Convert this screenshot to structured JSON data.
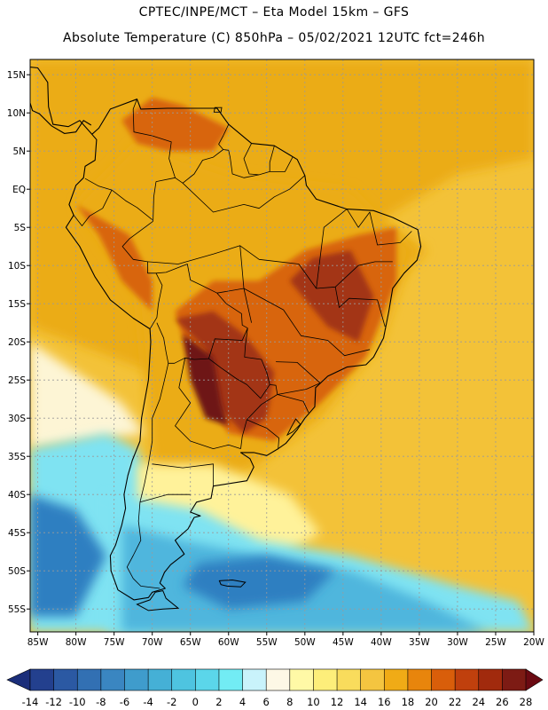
{
  "title": {
    "line1": "CPTEC/INPE/MCT –  Eta Model 15km – GFS",
    "line2": "Absolute Temperature (C) 850hPa – 05/02/2021 12UTC fct=246h"
  },
  "map": {
    "lon_range": [
      -86,
      -20
    ],
    "lat_range": [
      -58,
      17
    ],
    "lon_ticks": [
      "85W",
      "80W",
      "75W",
      "70W",
      "65W",
      "60W",
      "55W",
      "50W",
      "45W",
      "40W",
      "35W",
      "30W",
      "25W",
      "20W"
    ],
    "lon_tick_values": [
      -85,
      -80,
      -75,
      -70,
      -65,
      -60,
      -55,
      -50,
      -45,
      -40,
      -35,
      -30,
      -25,
      -20
    ],
    "lat_ticks": [
      "15N",
      "10N",
      "5N",
      "EQ",
      "5S",
      "10S",
      "15S",
      "20S",
      "25S",
      "30S",
      "35S",
      "40S",
      "45S",
      "50S",
      "55S"
    ],
    "lat_tick_values": [
      15,
      10,
      5,
      0,
      -5,
      -10,
      -15,
      -20,
      -25,
      -30,
      -35,
      -40,
      -45,
      -50,
      -55
    ]
  },
  "colorbar": {
    "labels": [
      "-14",
      "-12",
      "-10",
      "-8",
      "-6",
      "-4",
      "-2",
      "0",
      "2",
      "4",
      "6",
      "8",
      "10",
      "12",
      "14",
      "16",
      "18",
      "20",
      "22",
      "24",
      "26",
      "28"
    ],
    "under_color": "#1b2e7a",
    "over_color": "#6b0a12",
    "colors": [
      "#23408e",
      "#2b59a3",
      "#3270b3",
      "#3a86c1",
      "#3f9ccc",
      "#45b0d6",
      "#4ec4e0",
      "#5bd6ea",
      "#72ecf4",
      "#c9f3fb",
      "#fdf8e6",
      "#fff9a6",
      "#fdee7a",
      "#f9dc5c",
      "#f4c540",
      "#f0ab16",
      "#e8850c",
      "#d95e0a",
      "#c0400d",
      "#a12a0d",
      "#7d1b14"
    ]
  },
  "palette": {
    "ocean_warm": "#f3c238",
    "tropics": "#ebac16",
    "hot": "#d8650f",
    "very_hot": "#a33412",
    "hottest": "#6e1218",
    "cold_deep": "#2f7fc1",
    "cold": "#4fb6dd",
    "cool": "#7fe3f2",
    "mild": "#fdf5d5",
    "yellow": "#fff29a",
    "grid": "#9a9a9a",
    "coast": "#000000"
  }
}
